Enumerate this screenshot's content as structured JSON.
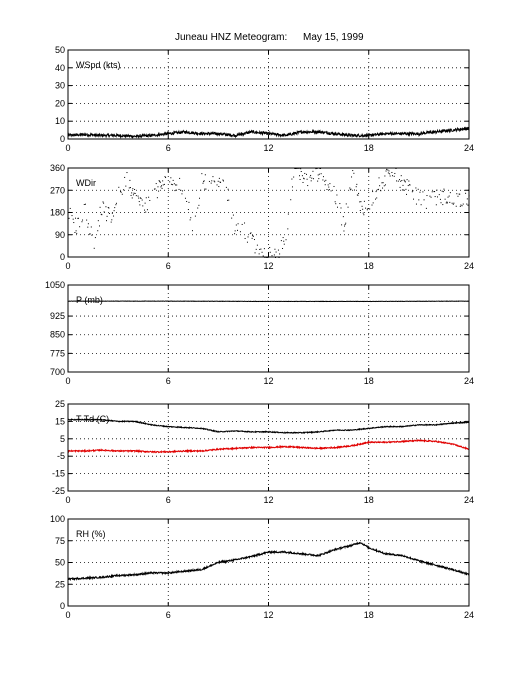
{
  "title": {
    "station": "Juneau HNZ Meteogram:",
    "date": "May 15, 1999"
  },
  "chart_data": [
    {
      "type": "line",
      "id": "wspd",
      "label": "WSpd (kts)",
      "xlabel": "",
      "ylabel": "",
      "xlim": [
        0,
        24
      ],
      "ylim": [
        0,
        50
      ],
      "xticks": [
        0,
        6,
        12,
        18,
        24
      ],
      "yticks": [
        0,
        10,
        20,
        30,
        40,
        50
      ],
      "grid": true,
      "series": [
        {
          "color": "#000000",
          "style": "noisy",
          "noise": 0.8,
          "x": [
            0,
            1,
            2,
            3,
            4,
            5,
            6,
            7,
            8,
            9,
            10,
            11,
            12,
            13,
            14,
            15,
            16,
            17,
            18,
            19,
            20,
            21,
            22,
            23,
            24
          ],
          "y": [
            2,
            2.5,
            2,
            2,
            1.5,
            2,
            3,
            4,
            3,
            3,
            2,
            4,
            3,
            2,
            4,
            4,
            3,
            2,
            2,
            3,
            3,
            3,
            4,
            5,
            6
          ]
        }
      ]
    },
    {
      "type": "scatter",
      "id": "wdir",
      "label": "WDir",
      "xlabel": "",
      "ylabel": "",
      "xlim": [
        0,
        24
      ],
      "ylim": [
        0,
        360
      ],
      "xticks": [
        0,
        6,
        12,
        18,
        24
      ],
      "yticks": [
        0,
        90,
        180,
        270,
        360
      ],
      "grid": true,
      "series": [
        {
          "color": "#000000",
          "style": "scatter",
          "noise": 35,
          "x": [
            0,
            0.5,
            1,
            1.5,
            2,
            2.5,
            3,
            3.5,
            4,
            4.5,
            5,
            5.5,
            6,
            6.5,
            7,
            7.5,
            8,
            8.5,
            9,
            9.5,
            10,
            10.5,
            11,
            11.5,
            12,
            12.5,
            13,
            13.5,
            14,
            14.5,
            15,
            15.5,
            16,
            16.5,
            17,
            17.5,
            18,
            18.5,
            19,
            19.5,
            20,
            20.5,
            21,
            21.5,
            22,
            22.5,
            23,
            23.5,
            24
          ],
          "y": [
            180,
            120,
            200,
            60,
            200,
            160,
            250,
            330,
            240,
            210,
            240,
            290,
            320,
            300,
            260,
            110,
            320,
            290,
            300,
            260,
            110,
            120,
            60,
            20,
            10,
            5,
            80,
            360,
            320,
            310,
            350,
            300,
            240,
            130,
            340,
            200,
            220,
            280,
            330,
            360,
            300,
            270,
            240,
            220,
            240,
            250,
            230,
            240,
            240
          ]
        }
      ]
    },
    {
      "type": "line",
      "id": "pres",
      "label": "P (mb)",
      "xlabel": "",
      "ylabel": "",
      "xlim": [
        0,
        24
      ],
      "ylim": [
        700,
        1050
      ],
      "xticks": [
        0,
        6,
        12,
        18,
        24
      ],
      "yticks": [
        700,
        775,
        850,
        925,
        1050
      ],
      "grid": true,
      "series": [
        {
          "color": "#000000",
          "style": "noisy",
          "noise": 0.6,
          "x": [
            0,
            6,
            12,
            18,
            24
          ],
          "y": [
            985,
            985,
            984,
            984,
            985
          ]
        }
      ]
    },
    {
      "type": "line",
      "id": "ttd",
      "label": "T Td (C)",
      "xlabel": "",
      "ylabel": "",
      "xlim": [
        0,
        24
      ],
      "ylim": [
        -25,
        25
      ],
      "xticks": [
        0,
        6,
        12,
        18,
        24
      ],
      "yticks": [
        -25,
        -15,
        -5,
        5,
        15,
        25
      ],
      "grid": true,
      "series": [
        {
          "color": "#000000",
          "style": "noisy",
          "noise": 0.25,
          "x": [
            0,
            1,
            2,
            3,
            4,
            5,
            6,
            7,
            8,
            9,
            10,
            11,
            12,
            13,
            14,
            15,
            16,
            17,
            18,
            19,
            20,
            21,
            22,
            23,
            24
          ],
          "y": [
            16,
            16,
            16,
            15,
            15,
            13,
            12,
            11.5,
            11,
            9,
            9.5,
            9,
            9,
            8.5,
            8.5,
            9,
            10,
            10,
            11,
            12,
            12,
            13,
            13,
            14,
            14.5
          ]
        },
        {
          "color": "#e00000",
          "style": "noisy",
          "noise": 0.35,
          "x": [
            0,
            1,
            2,
            3,
            4,
            5,
            6,
            7,
            8,
            9,
            10,
            11,
            12,
            13,
            14,
            15,
            16,
            17,
            18,
            19,
            20,
            21,
            22,
            23,
            24
          ],
          "y": [
            -2,
            -2,
            -1.5,
            -2,
            -2,
            -2.5,
            -2.5,
            -2,
            -2,
            -1,
            -0.5,
            0,
            0,
            0.5,
            0,
            -0.5,
            0,
            1,
            3,
            3,
            3.5,
            4,
            3.5,
            2,
            -1
          ]
        }
      ]
    },
    {
      "type": "line",
      "id": "rh",
      "label": "RH (%)",
      "xlabel": "",
      "ylabel": "",
      "xlim": [
        0,
        24
      ],
      "ylim": [
        0,
        100
      ],
      "xticks": [
        0,
        6,
        12,
        18,
        24
      ],
      "yticks": [
        0,
        25,
        50,
        75,
        100
      ],
      "grid": true,
      "series": [
        {
          "color": "#000000",
          "style": "noisy",
          "noise": 0.9,
          "x": [
            0,
            1,
            2,
            3,
            4,
            5,
            6,
            7,
            8,
            9,
            10,
            11,
            12,
            13,
            14,
            15,
            16,
            17,
            17.5,
            18,
            19,
            20,
            21,
            22,
            23,
            24
          ],
          "y": [
            31,
            32,
            33,
            35,
            36,
            38,
            38,
            40,
            42,
            50,
            53,
            57,
            62,
            62,
            60,
            58,
            65,
            70,
            73,
            67,
            60,
            58,
            52,
            47,
            42,
            36
          ]
        }
      ]
    }
  ]
}
